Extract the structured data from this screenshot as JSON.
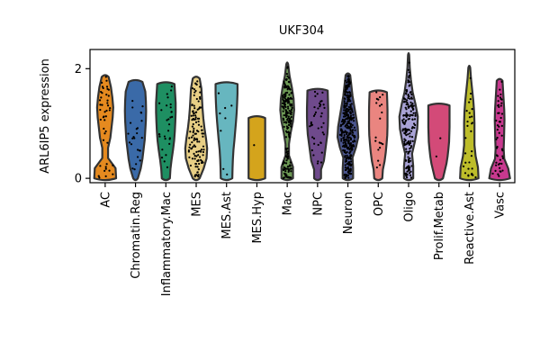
{
  "chart_data": {
    "type": "violin",
    "title": "UKF304",
    "xlabel": "",
    "ylabel": "ARL6IP5 expression",
    "ylim": [
      -0.08,
      2.35
    ],
    "yticks": [
      0,
      2
    ],
    "grid": false,
    "legend": "none",
    "categories": [
      "AC",
      "Chromatin.Reg",
      "Inflammatory.Mac",
      "MES",
      "MES.Ast",
      "MES.Hyp",
      "Mac",
      "NPC",
      "Neuron",
      "OPC",
      "Oligo",
      "Prolif.Metab",
      "Reactive.Ast",
      "Vasc"
    ],
    "colors": [
      "#e58a1f",
      "#3a6aa8",
      "#1e8f62",
      "#e8cf85",
      "#67b6bf",
      "#d4a41c",
      "#6e9a56",
      "#6f4a8c",
      "#4b5690",
      "#ea8580",
      "#a9a3d6",
      "#d34a78",
      "#bdbd2a",
      "#c8398f"
    ],
    "series": [
      {
        "name": "AC",
        "max": 1.85,
        "profile": [
          0.95,
          0.9,
          0.25,
          0.25,
          0.45,
          0.55,
          0.65,
          0.7,
          0.62,
          0.5,
          0.3
        ]
      },
      {
        "name": "Chromatin.Reg",
        "max": 1.76,
        "profile": [
          0.2,
          0.45,
          0.6,
          0.7,
          0.8,
          0.85,
          0.9,
          0.92,
          0.9,
          0.85,
          0.6
        ]
      },
      {
        "name": "Inflammatory.Mac",
        "max": 1.72,
        "profile": [
          0.35,
          0.4,
          0.5,
          0.62,
          0.72,
          0.78,
          0.82,
          0.85,
          0.85,
          0.8,
          0.75
        ]
      },
      {
        "name": "MES",
        "max": 1.82,
        "profile": [
          0.3,
          0.65,
          0.9,
          0.95,
          0.85,
          0.72,
          0.62,
          0.55,
          0.5,
          0.45,
          0.3
        ]
      },
      {
        "name": "MES.Ast",
        "max": 1.72,
        "profile": [
          0.5,
          0.52,
          0.55,
          0.6,
          0.68,
          0.75,
          0.82,
          0.88,
          0.92,
          0.95,
          0.95
        ]
      },
      {
        "name": "MES.Hyp",
        "max": 1.1,
        "profile": [
          0.72,
          0.72,
          0.72,
          0.72,
          0.72,
          0.72,
          0.72,
          0.72,
          0.72,
          0.72,
          0.72
        ]
      },
      {
        "name": "Mac",
        "max": 2.08,
        "profile": [
          0.5,
          0.5,
          0.15,
          0.15,
          0.3,
          0.5,
          0.6,
          0.55,
          0.4,
          0.2,
          0.08
        ]
      },
      {
        "name": "NPC",
        "max": 1.6,
        "profile": [
          0.3,
          0.3,
          0.55,
          0.65,
          0.75,
          0.85,
          0.9,
          0.92,
          0.92,
          0.9,
          0.88
        ]
      },
      {
        "name": "Neuron",
        "max": 1.88,
        "profile": [
          0.45,
          0.45,
          0.4,
          0.7,
          0.9,
          0.85,
          0.7,
          0.55,
          0.4,
          0.3,
          0.2
        ]
      },
      {
        "name": "OPC",
        "max": 1.57,
        "profile": [
          0.35,
          0.4,
          0.55,
          0.65,
          0.72,
          0.78,
          0.8,
          0.8,
          0.8,
          0.78,
          0.75
        ]
      },
      {
        "name": "Oligo",
        "max": 2.25,
        "profile": [
          0.4,
          0.4,
          0.3,
          0.55,
          0.75,
          0.8,
          0.6,
          0.35,
          0.2,
          0.1,
          0.05
        ]
      },
      {
        "name": "Prolif.Metab",
        "max": 1.33,
        "profile": [
          0.35,
          0.5,
          0.65,
          0.75,
          0.82,
          0.88,
          0.9,
          0.92,
          0.92,
          0.92,
          0.92
        ]
      },
      {
        "name": "Reactive.Ast",
        "max": 2.02,
        "profile": [
          0.8,
          0.75,
          0.55,
          0.45,
          0.45,
          0.45,
          0.42,
          0.35,
          0.25,
          0.15,
          0.08
        ]
      },
      {
        "name": "Vasc",
        "max": 1.78,
        "profile": [
          0.9,
          0.75,
          0.4,
          0.35,
          0.38,
          0.4,
          0.42,
          0.4,
          0.35,
          0.3,
          0.25
        ]
      }
    ],
    "points_per_category": [
      45,
      25,
      30,
      120,
      8,
      1,
      200,
      40,
      350,
      20,
      180,
      2,
      30,
      50
    ]
  }
}
